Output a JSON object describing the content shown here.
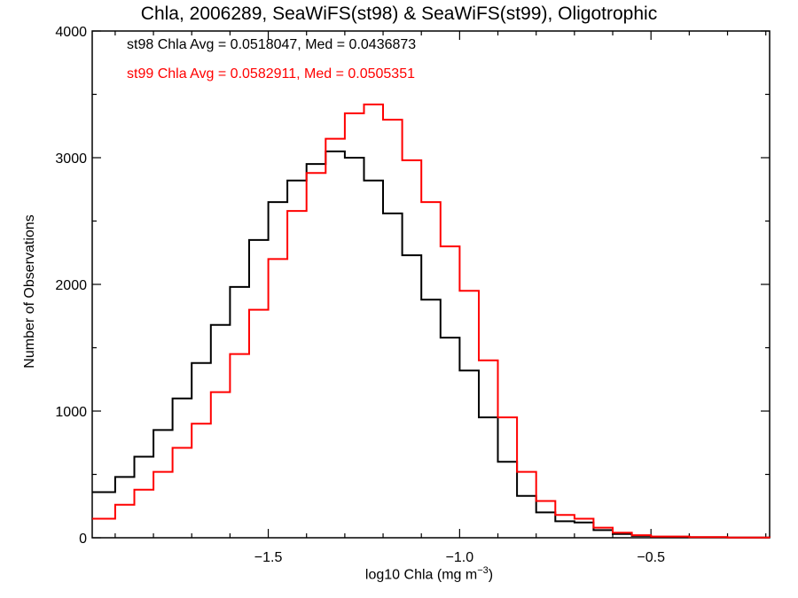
{
  "chart_data": {
    "type": "histogram",
    "title": "Chla, 2006289, SeaWiFS(st98) & SeaWiFS(st99), Oligotrophic",
    "xlabel": "log10 Chla (mg m",
    "xlabel_sup": "−3",
    "xlabel_end": ")",
    "ylabel": "Number of Observations",
    "xlim": [
      -1.96,
      -0.19
    ],
    "ylim": [
      0,
      4000
    ],
    "x_ticks": [
      {
        "value": -1.5,
        "label": "−1.5"
      },
      {
        "value": -1.0,
        "label": "−1.0"
      },
      {
        "value": -0.5,
        "label": "−0.5"
      }
    ],
    "y_ticks": [
      {
        "value": 0,
        "label": "0"
      },
      {
        "value": 1000,
        "label": "1000"
      },
      {
        "value": 2000,
        "label": "2000"
      },
      {
        "value": 3000,
        "label": "3000"
      },
      {
        "value": 4000,
        "label": "4000"
      }
    ],
    "grid": false,
    "annotations": [
      {
        "series": "st98",
        "text": "st98 Chla Avg = 0.0518047, Med = 0.0436873",
        "color": "#000000"
      },
      {
        "series": "st99",
        "text": "st99 Chla Avg = 0.0582911, Med = 0.0505351",
        "color": "#ff0000"
      }
    ],
    "series": [
      {
        "color": "#000000",
        "x": [
          -1.96,
          -1.9,
          -1.85,
          -1.8,
          -1.75,
          -1.7,
          -1.65,
          -1.6,
          -1.55,
          -1.5,
          -1.45,
          -1.4,
          -1.35,
          -1.3,
          -1.25,
          -1.2,
          -1.15,
          -1.1,
          -1.05,
          -1.0,
          -0.95,
          -0.9,
          -0.85,
          -0.8,
          -0.75,
          -0.7,
          -0.65,
          -0.6,
          -0.55,
          -0.5,
          -0.4,
          -0.3,
          -0.19
        ],
        "y": [
          360,
          480,
          640,
          850,
          1100,
          1380,
          1680,
          1980,
          2350,
          2650,
          2820,
          2950,
          3050,
          3000,
          2820,
          2560,
          2230,
          1880,
          1580,
          1320,
          950,
          600,
          330,
          200,
          130,
          120,
          60,
          30,
          15,
          8,
          4,
          2,
          1
        ]
      },
      {
        "color": "#ff0000",
        "x": [
          -1.96,
          -1.9,
          -1.85,
          -1.8,
          -1.75,
          -1.7,
          -1.65,
          -1.6,
          -1.55,
          -1.5,
          -1.45,
          -1.4,
          -1.35,
          -1.3,
          -1.25,
          -1.2,
          -1.15,
          -1.1,
          -1.05,
          -1.0,
          -0.95,
          -0.9,
          -0.85,
          -0.8,
          -0.75,
          -0.7,
          -0.65,
          -0.6,
          -0.55,
          -0.5,
          -0.4,
          -0.3,
          -0.19
        ],
        "y": [
          150,
          260,
          380,
          520,
          710,
          900,
          1150,
          1450,
          1800,
          2200,
          2580,
          2880,
          3150,
          3350,
          3420,
          3300,
          2980,
          2650,
          2300,
          1950,
          1400,
          950,
          520,
          290,
          180,
          150,
          80,
          40,
          20,
          10,
          5,
          2,
          1
        ]
      }
    ]
  }
}
